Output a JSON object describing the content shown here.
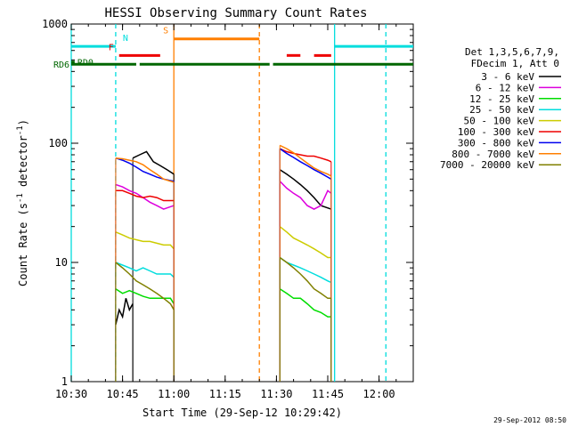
{
  "chart_data": {
    "type": "line",
    "title": "HESSI Observing Summary Count Rates",
    "xlabel": "Start Time (29-Sep-12 10:29:42)",
    "ylabel_main": "Count Rate (s",
    "ylabel_sup1": "-1",
    "ylabel_mid": " detector",
    "ylabel_sup2": "-1",
    "ylabel_end": ")",
    "yscale": "log",
    "ylim": [
      1,
      1000
    ],
    "xlim_minutes": [
      0,
      100
    ],
    "x_ticks": [
      {
        "label": "10:30",
        "m": 0
      },
      {
        "label": "10:45",
        "m": 15
      },
      {
        "label": "11:00",
        "m": 30
      },
      {
        "label": "11:15",
        "m": 45
      },
      {
        "label": "11:30",
        "m": 60
      },
      {
        "label": "11:45",
        "m": 75
      },
      {
        "label": "12:00",
        "m": 90
      }
    ],
    "y_ticks": [
      {
        "label": "1",
        "v": 1
      },
      {
        "label": "10",
        "v": 10
      },
      {
        "label": "100",
        "v": 100
      },
      {
        "label": "1000",
        "v": 1000
      }
    ],
    "legend_header": [
      "Det 1,3,5,6,7,9,",
      "FDecim 1, Att 0"
    ],
    "series": [
      {
        "name": "3 - 6 keV",
        "color": "#000000",
        "segments": [
          [
            [
              13,
              3
            ],
            [
              14,
              4
            ],
            [
              15,
              3.5
            ],
            [
              16,
              5
            ],
            [
              17,
              4
            ],
            [
              18,
              4.5
            ]
          ],
          [
            [
              18,
              75
            ],
            [
              20,
              80
            ],
            [
              22,
              85
            ],
            [
              24,
              70
            ],
            [
              26,
              65
            ],
            [
              28,
              60
            ],
            [
              30,
              55
            ]
          ],
          [
            [
              61,
              60
            ],
            [
              63,
              55
            ],
            [
              65,
              50
            ],
            [
              67,
              45
            ],
            [
              69,
              40
            ],
            [
              71,
              35
            ],
            [
              73,
              30
            ],
            [
              76,
              28
            ]
          ]
        ]
      },
      {
        "name": "6 - 12 keV",
        "color": "#dd00dd",
        "segments": [
          [
            [
              13,
              45
            ],
            [
              15,
              43
            ],
            [
              17,
              40
            ],
            [
              19,
              38
            ],
            [
              21,
              35
            ],
            [
              23,
              32
            ],
            [
              25,
              30
            ],
            [
              27,
              28
            ],
            [
              30,
              30
            ]
          ],
          [
            [
              61,
              48
            ],
            [
              63,
              42
            ],
            [
              65,
              38
            ],
            [
              67,
              35
            ],
            [
              69,
              30
            ],
            [
              71,
              28
            ],
            [
              73,
              30
            ],
            [
              75,
              40
            ],
            [
              76,
              38
            ]
          ]
        ]
      },
      {
        "name": "12 - 25 keV",
        "color": "#00dd00",
        "segments": [
          [
            [
              13,
              6
            ],
            [
              15,
              5.5
            ],
            [
              17,
              5.8
            ],
            [
              19,
              5.5
            ],
            [
              21,
              5.2
            ],
            [
              23,
              5
            ],
            [
              25,
              5
            ],
            [
              27,
              5
            ],
            [
              29,
              5
            ],
            [
              30,
              4.5
            ]
          ],
          [
            [
              61,
              6
            ],
            [
              63,
              5.5
            ],
            [
              65,
              5
            ],
            [
              67,
              5
            ],
            [
              69,
              4.5
            ],
            [
              71,
              4
            ],
            [
              73,
              3.8
            ],
            [
              75,
              3.5
            ],
            [
              76,
              3.5
            ]
          ]
        ]
      },
      {
        "name": "25 - 50 keV",
        "color": "#00dddd",
        "segments": [
          [
            [
              13,
              10
            ],
            [
              15,
              9.5
            ],
            [
              17,
              9
            ],
            [
              19,
              8.5
            ],
            [
              21,
              9
            ],
            [
              23,
              8.5
            ],
            [
              25,
              8
            ],
            [
              27,
              8
            ],
            [
              29,
              8
            ],
            [
              30,
              7.5
            ]
          ],
          [
            [
              61,
              11
            ],
            [
              63,
              10
            ],
            [
              65,
              9.5
            ],
            [
              67,
              9
            ],
            [
              69,
              8.5
            ],
            [
              71,
              8
            ],
            [
              73,
              7.5
            ],
            [
              75,
              7
            ],
            [
              76,
              6.8
            ]
          ]
        ]
      },
      {
        "name": "50 - 100 keV",
        "color": "#cccc00",
        "segments": [
          [
            [
              13,
              18
            ],
            [
              15,
              17
            ],
            [
              17,
              16
            ],
            [
              19,
              15.5
            ],
            [
              21,
              15
            ],
            [
              23,
              15
            ],
            [
              25,
              14.5
            ],
            [
              27,
              14
            ],
            [
              29,
              14
            ],
            [
              30,
              13
            ]
          ],
          [
            [
              61,
              20
            ],
            [
              63,
              18
            ],
            [
              65,
              16
            ],
            [
              67,
              15
            ],
            [
              69,
              14
            ],
            [
              71,
              13
            ],
            [
              73,
              12
            ],
            [
              75,
              11
            ],
            [
              76,
              11
            ]
          ]
        ]
      },
      {
        "name": "100 - 300 keV",
        "color": "#ee0000",
        "segments": [
          [
            [
              13,
              40
            ],
            [
              15,
              40
            ],
            [
              17,
              38
            ],
            [
              19,
              36
            ],
            [
              21,
              35
            ],
            [
              23,
              36
            ],
            [
              25,
              35
            ],
            [
              27,
              33
            ],
            [
              30,
              33
            ]
          ],
          [
            [
              61,
              90
            ],
            [
              63,
              85
            ],
            [
              65,
              82
            ],
            [
              67,
              80
            ],
            [
              69,
              78
            ],
            [
              71,
              78
            ],
            [
              73,
              75
            ],
            [
              75,
              72
            ],
            [
              76,
              70
            ]
          ]
        ]
      },
      {
        "name": "300 - 800 keV",
        "color": "#0000ee",
        "segments": [
          [
            [
              13,
              75
            ],
            [
              15,
              72
            ],
            [
              17,
              68
            ],
            [
              19,
              63
            ],
            [
              21,
              58
            ],
            [
              23,
              55
            ],
            [
              25,
              52
            ],
            [
              27,
              50
            ],
            [
              30,
              48
            ]
          ],
          [
            [
              61,
              90
            ],
            [
              63,
              82
            ],
            [
              65,
              76
            ],
            [
              67,
              70
            ],
            [
              69,
              65
            ],
            [
              71,
              60
            ],
            [
              73,
              56
            ],
            [
              75,
              52
            ],
            [
              76,
              50
            ]
          ]
        ]
      },
      {
        "name": "800 - 7000 keV",
        "color": "#ff7f00",
        "segments": [
          [
            [
              13,
              75
            ],
            [
              15,
              74
            ],
            [
              17,
              72
            ],
            [
              19,
              70
            ],
            [
              21,
              66
            ],
            [
              23,
              60
            ],
            [
              25,
              55
            ],
            [
              27,
              50
            ],
            [
              30,
              47
            ]
          ],
          [
            [
              61,
              96
            ],
            [
              63,
              90
            ],
            [
              65,
              83
            ],
            [
              67,
              75
            ],
            [
              69,
              68
            ],
            [
              71,
              62
            ],
            [
              73,
              58
            ],
            [
              75,
              55
            ],
            [
              76,
              53
            ]
          ]
        ]
      },
      {
        "name": "7000 - 20000 keV",
        "color": "#808000",
        "segments": [
          [
            [
              13,
              10
            ],
            [
              15,
              9
            ],
            [
              17,
              8
            ],
            [
              19,
              7
            ],
            [
              21,
              6.5
            ],
            [
              23,
              6
            ],
            [
              25,
              5.5
            ],
            [
              27,
              5
            ],
            [
              29,
              4.5
            ],
            [
              30,
              4
            ]
          ],
          [
            [
              61,
              11
            ],
            [
              63,
              10
            ],
            [
              65,
              9
            ],
            [
              67,
              8
            ],
            [
              69,
              7
            ],
            [
              71,
              6
            ],
            [
              73,
              5.5
            ],
            [
              75,
              5
            ],
            [
              76,
              5
            ]
          ]
        ]
      }
    ],
    "flags": [
      {
        "label": "N",
        "color": "#00dddd",
        "segments": [
          [
            0,
            13
          ],
          [
            77,
            100
          ]
        ],
        "v": 650
      },
      {
        "label": "F",
        "color": "#ee0000",
        "segments": [
          [
            14,
            26
          ],
          [
            63,
            67
          ],
          [
            71,
            76
          ]
        ],
        "v": 545
      },
      {
        "label": "S",
        "color": "#ff7f00",
        "segments": [
          [
            30,
            55
          ]
        ],
        "v": 750
      },
      {
        "label": "RD0",
        "color": "#006600",
        "segments": [
          [
            0,
            1
          ]
        ],
        "v": 480
      },
      {
        "label": "RD6",
        "color": "#006600",
        "segments": [
          [
            0,
            19
          ],
          [
            20,
            58
          ],
          [
            59,
            100
          ]
        ],
        "v": 460
      }
    ],
    "vlines": [
      {
        "m": 0,
        "color": "#00dddd",
        "dash": false
      },
      {
        "m": 13,
        "color": "#00dddd",
        "dash": true
      },
      {
        "m": 30,
        "color": "#ff7f00",
        "dash": false
      },
      {
        "m": 55,
        "color": "#ff7f00",
        "dash": true
      },
      {
        "m": 77,
        "color": "#00dddd",
        "dash": false
      },
      {
        "m": 92,
        "color": "#00dddd",
        "dash": true
      }
    ],
    "timestamp": "29-Sep-2012 08:50"
  }
}
